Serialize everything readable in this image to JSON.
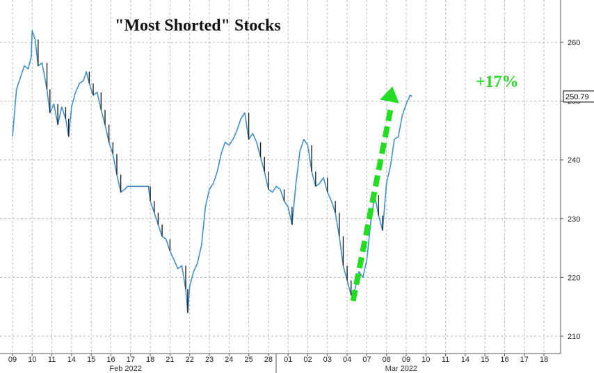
{
  "chart_data": {
    "type": "line",
    "title": "\"Most Shorted\" Stocks",
    "xlabel": "",
    "ylabel": "",
    "ylim": [
      208,
      267
    ],
    "y_ticks": [
      210,
      220,
      230,
      240,
      250,
      260
    ],
    "x_ticks": [
      "09",
      "10",
      "11",
      "14",
      "15",
      "16",
      "17",
      "18",
      "21",
      "22",
      "23",
      "24",
      "25",
      "28",
      "01",
      "02",
      "03",
      "04",
      "07",
      "08",
      "09",
      "10",
      "11",
      "14",
      "15",
      "16",
      "17",
      "18"
    ],
    "month_labels": [
      {
        "label": "Feb 2022",
        "day_index": 5.5
      },
      {
        "label": "Mar 2022",
        "day_index": 19.5
      }
    ],
    "last_value_label": "250.79",
    "annotation": "+17%",
    "grid": true,
    "line_color": "#3d8fd0",
    "line_color_dark": "#222222",
    "annotation_color": "#22dd22",
    "series": [
      {
        "values": [
          [
            0,
            244
          ],
          [
            0.2,
            252
          ],
          [
            0.4,
            254
          ],
          [
            0.6,
            256
          ],
          [
            0.8,
            255.5
          ],
          [
            0.95,
            257.5
          ],
          [
            1.0,
            262
          ],
          [
            1.15,
            260.5
          ],
          [
            1.3,
            256
          ],
          [
            1.5,
            256.5
          ],
          [
            1.75,
            252
          ],
          [
            1.9,
            248
          ],
          [
            2.1,
            249.5
          ],
          [
            2.3,
            246
          ],
          [
            2.5,
            249
          ],
          [
            2.7,
            247
          ],
          [
            2.85,
            244
          ],
          [
            3.0,
            249
          ],
          [
            3.2,
            251.5
          ],
          [
            3.4,
            253
          ],
          [
            3.6,
            253.5
          ],
          [
            3.75,
            255
          ],
          [
            3.9,
            253
          ],
          [
            4.1,
            251
          ],
          [
            4.3,
            251.5
          ],
          [
            4.5,
            248.5
          ],
          [
            4.7,
            246
          ],
          [
            4.9,
            243
          ],
          [
            5.1,
            241
          ],
          [
            5.3,
            237.5
          ],
          [
            5.5,
            234.5
          ],
          [
            5.7,
            235
          ],
          [
            5.85,
            235.5
          ],
          [
            6.0,
            235.5
          ],
          [
            6.5,
            235.5
          ],
          [
            6.9,
            235.5
          ],
          [
            7.0,
            233
          ],
          [
            7.2,
            231
          ],
          [
            7.4,
            229
          ],
          [
            7.6,
            227
          ],
          [
            7.8,
            226.5
          ],
          [
            8.0,
            224.5
          ],
          [
            8.2,
            223
          ],
          [
            8.4,
            221.5
          ],
          [
            8.6,
            222
          ],
          [
            8.8,
            218
          ],
          [
            8.9,
            214
          ],
          [
            9.0,
            218.5
          ],
          [
            9.2,
            221
          ],
          [
            9.4,
            222.5
          ],
          [
            9.6,
            225.5
          ],
          [
            9.8,
            232
          ],
          [
            10.0,
            235
          ],
          [
            10.2,
            236
          ],
          [
            10.4,
            238
          ],
          [
            10.6,
            241
          ],
          [
            10.8,
            243
          ],
          [
            11.0,
            242.5
          ],
          [
            11.2,
            243.5
          ],
          [
            11.4,
            245
          ],
          [
            11.6,
            247
          ],
          [
            11.8,
            248
          ],
          [
            12.0,
            243.5
          ],
          [
            12.2,
            244.5
          ],
          [
            12.4,
            243
          ],
          [
            12.6,
            240.5
          ],
          [
            12.8,
            238
          ],
          [
            13.0,
            235
          ],
          [
            13.2,
            234.5
          ],
          [
            13.4,
            235.5
          ],
          [
            13.6,
            235
          ],
          [
            13.8,
            233
          ],
          [
            14.0,
            232
          ],
          [
            14.2,
            229
          ],
          [
            14.4,
            236
          ],
          [
            14.6,
            241.5
          ],
          [
            14.8,
            243.5
          ],
          [
            15.0,
            242.5
          ],
          [
            15.2,
            238
          ],
          [
            15.4,
            235.5
          ],
          [
            15.6,
            236
          ],
          [
            15.8,
            237
          ],
          [
            16.0,
            234.5
          ],
          [
            16.2,
            233
          ],
          [
            16.4,
            231
          ],
          [
            16.6,
            227
          ],
          [
            16.8,
            222
          ],
          [
            17.0,
            219.5
          ],
          [
            17.2,
            217
          ],
          [
            17.4,
            218
          ],
          [
            17.6,
            221
          ],
          [
            17.8,
            220
          ],
          [
            18.0,
            223
          ],
          [
            18.2,
            229.5
          ],
          [
            18.4,
            234
          ],
          [
            18.6,
            230.5
          ],
          [
            18.8,
            228
          ],
          [
            19.0,
            236
          ],
          [
            19.2,
            239
          ],
          [
            19.4,
            243.5
          ],
          [
            19.6,
            244
          ],
          [
            19.8,
            247.5
          ],
          [
            20.0,
            249.5
          ],
          [
            20.2,
            251
          ],
          [
            20.3,
            250.79
          ]
        ]
      }
    ]
  }
}
